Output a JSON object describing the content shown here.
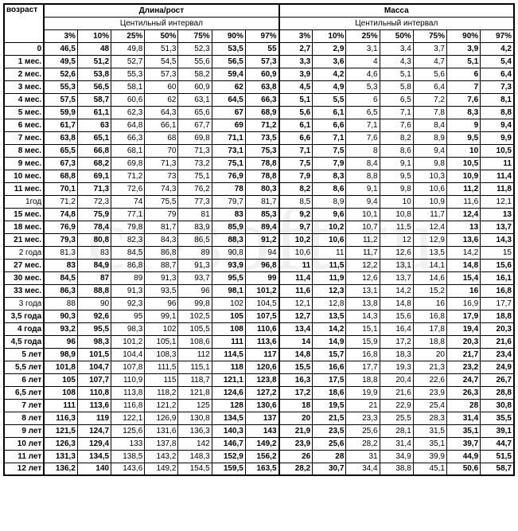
{
  "headers": {
    "age": "возраст",
    "length": "Длина/рост",
    "mass": "Масса",
    "centile": "Центильный  интервал",
    "centile2": "Центильный интервал",
    "percents": [
      "3%",
      "10%",
      "25%",
      "50%",
      "75%",
      "90%",
      "97%"
    ]
  },
  "watermark": "cl-soft.ru",
  "ages": [
    "0",
    "1 мес.",
    "2 мес.",
    "3 мес.",
    "4 мес.",
    "5 мес.",
    "6 мес.",
    "7 мес.",
    "8 мес.",
    "9 мес.",
    "10 мес.",
    "11 мес.",
    "1год",
    "15 мес.",
    "18 мес.",
    "21 мес.",
    "2 года",
    "27 мес.",
    "30 мес.",
    "33 мес.",
    "3 года",
    "3,5 года",
    "4 года",
    "4,5 года",
    "5 лет",
    "5,5 лет",
    "6 лет",
    "6,5 лет",
    "7 лет",
    "8 лет",
    "9 лет",
    "10 лет",
    "11 лет",
    "12 лет"
  ],
  "length": [
    [
      "46,5",
      "48",
      "49,8",
      "51,3",
      "52,3",
      "53,5",
      "55"
    ],
    [
      "49,5",
      "51,2",
      "52,7",
      "54,5",
      "55,6",
      "56,5",
      "57,3"
    ],
    [
      "52,6",
      "53,8",
      "55,3",
      "57,3",
      "58,2",
      "59,4",
      "60,9"
    ],
    [
      "55,3",
      "56,5",
      "58,1",
      "60",
      "60,9",
      "62",
      "63,8"
    ],
    [
      "57,5",
      "58,7",
      "60,6",
      "62",
      "63,1",
      "64,5",
      "66,3"
    ],
    [
      "59,9",
      "61,1",
      "62,3",
      "64,3",
      "65,6",
      "67",
      "68,9"
    ],
    [
      "61,7",
      "63",
      "64,8",
      "66,1",
      "67,7",
      "69",
      "71,2"
    ],
    [
      "63,8",
      "65,1",
      "66,3",
      "68",
      "69,8",
      "71,1",
      "73,5"
    ],
    [
      "65,5",
      "66,8",
      "68,1",
      "70",
      "71,3",
      "73,1",
      "75,3"
    ],
    [
      "67,3",
      "68,2",
      "69,8",
      "71,3",
      "73,2",
      "75,1",
      "78,8"
    ],
    [
      "68,8",
      "69,1",
      "71,2",
      "73",
      "75,1",
      "76,9",
      "78,8"
    ],
    [
      "70,1",
      "71,3",
      "72,6",
      "74,3",
      "76,2",
      "78",
      "80,3"
    ],
    [
      "71,2",
      "72,3",
      "74",
      "75,5",
      "77,3",
      "79,7",
      "81,7"
    ],
    [
      "74,8",
      "75,9",
      "77,1",
      "79",
      "81",
      "83",
      "85,3"
    ],
    [
      "76,9",
      "78,4",
      "79,8",
      "81,7",
      "83,9",
      "85,9",
      "89,4"
    ],
    [
      "79,3",
      "80,8",
      "82,3",
      "84,3",
      "86,5",
      "88,3",
      "91,2"
    ],
    [
      "81,3",
      "83",
      "84,5",
      "86,8",
      "89",
      "90,8",
      "94"
    ],
    [
      "83",
      "84,9",
      "86,8",
      "88,7",
      "91,3",
      "93,9",
      "96,8"
    ],
    [
      "84,5",
      "87",
      "89",
      "91,3",
      "93,7",
      "95,5",
      "99"
    ],
    [
      "86,3",
      "88,8",
      "91,3",
      "93,5",
      "96",
      "98,1",
      "101,2"
    ],
    [
      "88",
      "90",
      "92,3",
      "96",
      "99,8",
      "102",
      "104,5"
    ],
    [
      "90,3",
      "92,6",
      "95",
      "99,1",
      "102,5",
      "105",
      "107,5"
    ],
    [
      "93,2",
      "95,5",
      "98,3",
      "102",
      "105,5",
      "108",
      "110,6"
    ],
    [
      "96",
      "98,3",
      "101,2",
      "105,1",
      "108,6",
      "111",
      "113,6"
    ],
    [
      "98,9",
      "101,5",
      "104,4",
      "108,3",
      "112",
      "114,5",
      "117"
    ],
    [
      "101,8",
      "104,7",
      "107,8",
      "111,5",
      "115,1",
      "118",
      "120,6"
    ],
    [
      "105",
      "107,7",
      "110,9",
      "115",
      "118,7",
      "121,1",
      "123,8"
    ],
    [
      "108",
      "110,8",
      "113,8",
      "118,2",
      "121,8",
      "124,6",
      "127,2"
    ],
    [
      "111",
      "113,6",
      "116,8",
      "121,2",
      "125",
      "128",
      "130,6"
    ],
    [
      "116,3",
      "119",
      "122,1",
      "126,9",
      "130,8",
      "134,5",
      "137"
    ],
    [
      "121,5",
      "124,7",
      "125,6",
      "131,6",
      "136,3",
      "140,3",
      "143"
    ],
    [
      "126,3",
      "129,4",
      "133",
      "137,8",
      "142",
      "146,7",
      "149,2"
    ],
    [
      "131,3",
      "134,5",
      "138,5",
      "143,2",
      "148,3",
      "152,9",
      "156,2"
    ],
    [
      "136,2",
      "140",
      "143,6",
      "149,2",
      "154,5",
      "159,5",
      "163,5"
    ]
  ],
  "mass": [
    [
      "2,7",
      "2,9",
      "3,1",
      "3,4",
      "3,7",
      "3,9",
      "4,2"
    ],
    [
      "3,3",
      "3,6",
      "4",
      "4,3",
      "4,7",
      "5,1",
      "5,4"
    ],
    [
      "3,9",
      "4,2",
      "4,6",
      "5,1",
      "5,6",
      "6",
      "6,4"
    ],
    [
      "4,5",
      "4,9",
      "5,3",
      "5,8",
      "6,4",
      "7",
      "7,3"
    ],
    [
      "5,1",
      "5,5",
      "6",
      "6,5",
      "7,2",
      "7,6",
      "8,1"
    ],
    [
      "5,6",
      "6,1",
      "6,5",
      "7,1",
      "7,8",
      "8,3",
      "8,8"
    ],
    [
      "6,1",
      "6,6",
      "7,1",
      "7,6",
      "8,4",
      "9",
      "9,4"
    ],
    [
      "6,6",
      "7,1",
      "7,6",
      "8,2",
      "8,9",
      "9,5",
      "9,9"
    ],
    [
      "7,1",
      "7,5",
      "8",
      "8,6",
      "9,4",
      "10",
      "10,5"
    ],
    [
      "7,5",
      "7,9",
      "8,4",
      "9,1",
      "9,8",
      "10,5",
      "11"
    ],
    [
      "7,9",
      "8,3",
      "8,8",
      "9,5",
      "10,3",
      "10,9",
      "11,4"
    ],
    [
      "8,2",
      "8,6",
      "9,1",
      "9,8",
      "10,6",
      "11,2",
      "11,8"
    ],
    [
      "8,5",
      "8,9",
      "9,4",
      "10",
      "10,9",
      "11,6",
      "12,1"
    ],
    [
      "9,2",
      "9,6",
      "10,1",
      "10,8",
      "11,7",
      "12,4",
      "13"
    ],
    [
      "9,7",
      "10,2",
      "10,7",
      "11,5",
      "12,4",
      "13",
      "13,7"
    ],
    [
      "10,2",
      "10,6",
      "11,2",
      "12",
      "12,9",
      "13,6",
      "14,3"
    ],
    [
      "10,6",
      "11",
      "11,7",
      "12,6",
      "13,5",
      "14,2",
      "15"
    ],
    [
      "11",
      "11,5",
      "12,2",
      "13,1",
      "14,1",
      "14,8",
      "15,6"
    ],
    [
      "11,4",
      "11,9",
      "12,6",
      "13,7",
      "14,6",
      "15,4",
      "16,1"
    ],
    [
      "11,6",
      "12,3",
      "13,1",
      "14,2",
      "15,2",
      "16",
      "16,8"
    ],
    [
      "12,1",
      "12,8",
      "13,8",
      "14,8",
      "16",
      "16,9",
      "17,7"
    ],
    [
      "12,7",
      "13,5",
      "14,3",
      "15,6",
      "16,8",
      "17,9",
      "18,8"
    ],
    [
      "13,4",
      "14,2",
      "15,1",
      "16,4",
      "17,8",
      "19,4",
      "20,3"
    ],
    [
      "14",
      "14,9",
      "15,9",
      "17,2",
      "18,8",
      "20,3",
      "21,6"
    ],
    [
      "14,8",
      "15,7",
      "16,8",
      "18,3",
      "20",
      "21,7",
      "23,4"
    ],
    [
      "15,5",
      "16,6",
      "17,7",
      "19,3",
      "21,3",
      "23,2",
      "24,9"
    ],
    [
      "16,3",
      "17,5",
      "18,8",
      "20,4",
      "22,6",
      "24,7",
      "26,7"
    ],
    [
      "17,2",
      "18,6",
      "19,9",
      "21,6",
      "23,9",
      "26,3",
      "28,8"
    ],
    [
      "18",
      "19,5",
      "21",
      "22,9",
      "25,4",
      "28",
      "30,8"
    ],
    [
      "20",
      "21,5",
      "23,3",
      "25,5",
      "28,3",
      "31,4",
      "35,5"
    ],
    [
      "21,9",
      "23,5",
      "25,6",
      "28,1",
      "31,5",
      "35,1",
      "39,1"
    ],
    [
      "23,9",
      "25,6",
      "28,2",
      "31,4",
      "35,1",
      "39,7",
      "44,7"
    ],
    [
      "26",
      "28",
      "31",
      "34,9",
      "39,9",
      "44,9",
      "51,5"
    ],
    [
      "28,2",
      "30,7",
      "34,4",
      "38,8",
      "45,1",
      "50,6",
      "58,7"
    ]
  ],
  "boldCols": [
    0,
    1,
    5,
    6
  ],
  "lightRows": [
    12,
    16,
    20
  ],
  "colors": {
    "border": "#000000",
    "bg": "#ffffff",
    "wm": "rgba(0,0,0,0.06)"
  }
}
